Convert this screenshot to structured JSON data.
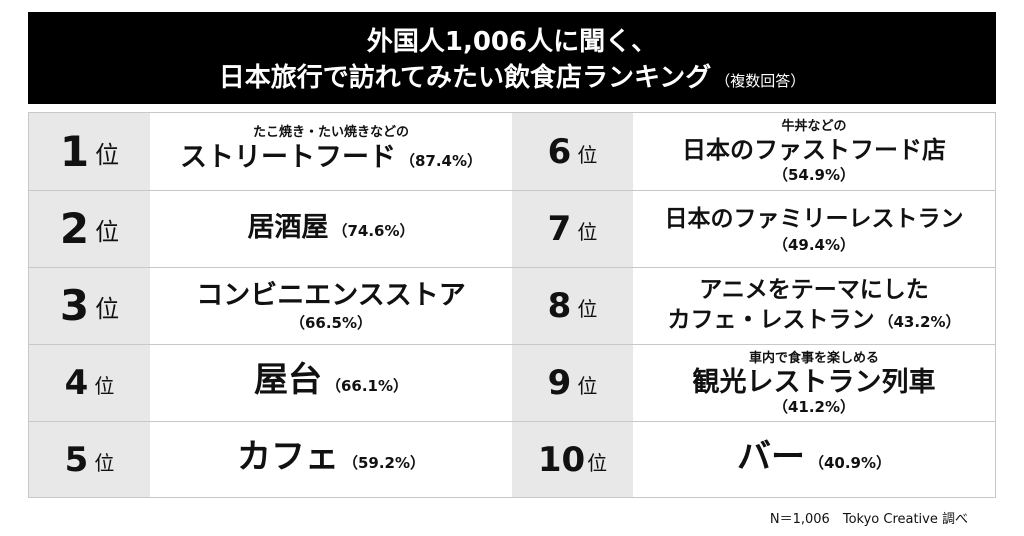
{
  "header": {
    "line1": "外国人1,006人に聞く、",
    "line2": "日本旅行で訪れてみたい飲食店ランキング",
    "note": "（複数回答）"
  },
  "rank_suffix": "位",
  "chart_data": {
    "type": "table",
    "rows": [
      {
        "rank": "1",
        "pre": "たこ焼き・たい焼きなどの",
        "name": "ストリートフード",
        "pct_label": "（87.4%）",
        "value": 87.4
      },
      {
        "rank": "2",
        "pre": "",
        "name": "居酒屋",
        "pct_label": "（74.6%）",
        "value": 74.6
      },
      {
        "rank": "3",
        "pre": "",
        "name": "コンビニエンスストア",
        "pct_label": "（66.5%）",
        "value": 66.5
      },
      {
        "rank": "4",
        "pre": "",
        "name": "屋台",
        "pct_label": "（66.1%）",
        "value": 66.1
      },
      {
        "rank": "5",
        "pre": "",
        "name": "カフェ",
        "pct_label": "（59.2%）",
        "value": 59.2
      },
      {
        "rank": "6",
        "pre": "牛丼などの",
        "name": "日本のファストフード店",
        "pct_label": "（54.9%）",
        "value": 54.9
      },
      {
        "rank": "7",
        "pre": "",
        "name": "日本のファミリーレストラン",
        "pct_label": "（49.4%）",
        "value": 49.4
      },
      {
        "rank": "8",
        "pre": "",
        "name_line1": "アニメをテーマにした",
        "name": "カフェ・レストラン",
        "pct_label": "（43.2%）",
        "value": 43.2
      },
      {
        "rank": "9",
        "pre": "車内で食事を楽しめる",
        "name": "観光レストラン列車",
        "pct_label": "（41.2%）",
        "value": 41.2
      },
      {
        "rank": "10",
        "pre": "",
        "name": "バー",
        "pct_label": "（40.9%）",
        "value": 40.9
      }
    ]
  },
  "source": "N＝1,006　Tokyo Creative 調べ"
}
